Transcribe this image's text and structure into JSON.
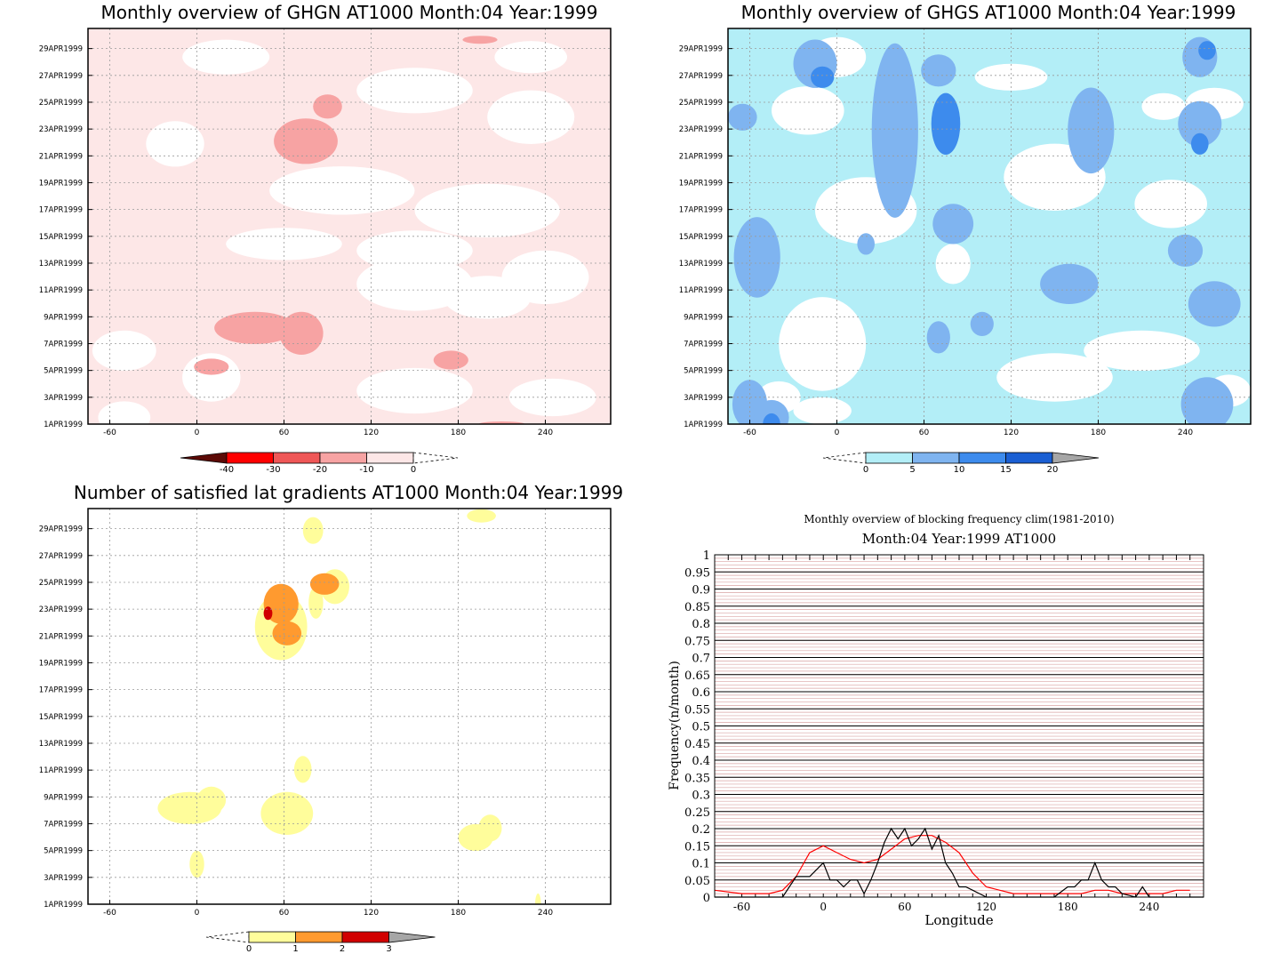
{
  "chart_data": [
    {
      "type": "heatmap",
      "title": "Monthly overview of GHGN AT1000 Month:04 Year:1999",
      "x_ticks": [
        "-60",
        "0",
        "60",
        "120",
        "180",
        "240"
      ],
      "xlim": [
        -75,
        285
      ],
      "y_ticks": [
        "1APR1999",
        "3APR1999",
        "5APR1999",
        "7APR1999",
        "9APR1999",
        "11APR1999",
        "13APR1999",
        "15APR1999",
        "17APR1999",
        "19APR1999",
        "21APR1999",
        "23APR1999",
        "25APR1999",
        "27APR1999",
        "29APR1999"
      ],
      "colorbar": {
        "labels": [
          "-40",
          "-30",
          "-20",
          "-10",
          "0"
        ],
        "colors": [
          "#5c0a06",
          "#ff0000",
          "#ef5757",
          "#f7a3a3",
          "#fde7e7"
        ]
      },
      "background_color": "#fde7e7",
      "regions": [
        {
          "level": "0",
          "color": "#ffffff",
          "ellipses": [
            [
              -50,
              1.5,
              18,
              1.2
            ],
            [
              10,
              4.5,
              20,
              1.8
            ],
            [
              -50,
              6.5,
              22,
              1.5
            ],
            [
              150,
              3.5,
              40,
              1.7
            ],
            [
              245,
              3.0,
              30,
              1.4
            ],
            [
              200,
              10.5,
              30,
              1.6
            ],
            [
              150,
              11.5,
              40,
              2.0
            ],
            [
              60,
              14.5,
              40,
              1.2
            ],
            [
              150,
              14.0,
              40,
              1.5
            ],
            [
              240,
              12.0,
              30,
              2.0
            ],
            [
              100,
              18.5,
              50,
              1.8
            ],
            [
              200,
              17.0,
              50,
              2.0
            ],
            [
              -15,
              22.0,
              20,
              1.7
            ],
            [
              230,
              24.0,
              30,
              2.0
            ],
            [
              150,
              26.0,
              40,
              1.7
            ],
            [
              20,
              28.5,
              30,
              1.3
            ],
            [
              230,
              28.5,
              25,
              1.2
            ]
          ]
        },
        {
          "level": "-10",
          "color": "#f7a3a3",
          "ellipses": [
            [
              40,
              8.2,
              28,
              1.2
            ],
            [
              72,
              7.8,
              15,
              1.6
            ],
            [
              10,
              5.3,
              12,
              0.6
            ],
            [
              175,
              5.8,
              12,
              0.7
            ],
            [
              75,
              22.2,
              22,
              1.7
            ],
            [
              90,
              24.8,
              10,
              0.9
            ],
            [
              65,
              2.0,
              0,
              0
            ],
            [
              210,
              1.0,
              16,
              0.2
            ],
            [
              195,
              29.8,
              12,
              0.3
            ]
          ]
        }
      ]
    },
    {
      "type": "heatmap",
      "title": "Monthly overview of GHGS AT1000 Month:04 Year:1999",
      "x_ticks": [
        "-60",
        "0",
        "60",
        "120",
        "180",
        "240"
      ],
      "xlim": [
        -75,
        285
      ],
      "y_ticks": [
        "1APR1999",
        "3APR1999",
        "5APR1999",
        "7APR1999",
        "9APR1999",
        "11APR1999",
        "13APR1999",
        "15APR1999",
        "17APR1999",
        "19APR1999",
        "21APR1999",
        "23APR1999",
        "25APR1999",
        "27APR1999",
        "29APR1999"
      ],
      "colorbar": {
        "labels": [
          "0",
          "5",
          "10",
          "15",
          "20"
        ],
        "colors": [
          "#b3eef7",
          "#7fb4f0",
          "#3d8bed",
          "#1a5fd3",
          "#a6a6a6"
        ]
      },
      "background_color": "#b3eef7",
      "regions": [
        {
          "level": "0",
          "color": "#ffffff",
          "ellipses": [
            [
              -10,
              7.0,
              30,
              3.5
            ],
            [
              -40,
              3.0,
              15,
              1.2
            ],
            [
              -10,
              2.0,
              20,
              1.0
            ],
            [
              150,
              4.5,
              40,
              1.8
            ],
            [
              210,
              6.5,
              40,
              1.5
            ],
            [
              270,
              3.5,
              15,
              1.2
            ],
            [
              20,
              17.0,
              35,
              2.5
            ],
            [
              -20,
              24.5,
              25,
              1.8
            ],
            [
              0,
              28.5,
              20,
              1.5
            ],
            [
              150,
              19.5,
              35,
              2.5
            ],
            [
              230,
              17.5,
              25,
              1.8
            ],
            [
              260,
              25.0,
              20,
              1.2
            ],
            [
              120,
              27.0,
              25,
              1.0
            ],
            [
              80,
              13.0,
              12,
              1.5
            ],
            [
              225,
              24.8,
              15,
              1.0
            ]
          ]
        },
        {
          "level": "5",
          "color": "#7fb4f0",
          "ellipses": [
            [
              -55,
              13.5,
              16,
              3.0
            ],
            [
              -60,
              2.5,
              12,
              1.8
            ],
            [
              -45,
              1.5,
              12,
              1.3
            ],
            [
              40,
              23.0,
              16,
              6.5
            ],
            [
              80,
              16.0,
              14,
              1.5
            ],
            [
              160,
              11.5,
              20,
              1.5
            ],
            [
              175,
              23.0,
              16,
              3.2
            ],
            [
              250,
              23.5,
              15,
              1.7
            ],
            [
              250,
              28.5,
              12,
              1.5
            ],
            [
              260,
              10.0,
              18,
              1.7
            ],
            [
              240,
              14.0,
              12,
              1.2
            ],
            [
              255,
              2.5,
              18,
              2.0
            ],
            [
              -15,
              28.0,
              15,
              1.8
            ],
            [
              70,
              27.5,
              12,
              1.2
            ],
            [
              70,
              7.5,
              8,
              1.2
            ],
            [
              100,
              8.5,
              8,
              0.9
            ],
            [
              -65,
              24.0,
              10,
              1.0
            ],
            [
              20,
              14.5,
              6,
              0.8
            ]
          ]
        },
        {
          "level": "10",
          "color": "#3d8bed",
          "ellipses": [
            [
              75,
              23.5,
              10,
              2.3
            ],
            [
              -45,
              1.0,
              6,
              0.8
            ],
            [
              -10,
              27.0,
              8,
              0.8
            ],
            [
              255,
              29.0,
              6,
              0.7
            ],
            [
              250,
              22.0,
              6,
              0.8
            ]
          ]
        }
      ]
    },
    {
      "type": "heatmap",
      "title": "Number of satisfied lat gradients AT1000 Month:04 Year:1999",
      "x_ticks": [
        "-60",
        "0",
        "60",
        "120",
        "180",
        "240"
      ],
      "xlim": [
        -75,
        285
      ],
      "y_ticks": [
        "1APR1999",
        "3APR1999",
        "5APR1999",
        "7APR1999",
        "9APR1999",
        "11APR1999",
        "13APR1999",
        "15APR1999",
        "17APR1999",
        "19APR1999",
        "21APR1999",
        "23APR1999",
        "25APR1999",
        "27APR1999",
        "29APR1999"
      ],
      "colorbar": {
        "labels": [
          "0",
          "1",
          "2",
          "3"
        ],
        "colors": [
          "#fffd9b",
          "#ff9a2f",
          "#d10000",
          "#a6a6a6"
        ]
      },
      "background_color": "#ffffff",
      "regions": [
        {
          "level": "1",
          "color": "#fffd9b",
          "ellipses": [
            [
              80,
              29.0,
              7,
              1.0
            ],
            [
              196,
              30.1,
              10,
              0.5
            ],
            [
              58,
              21.8,
              18,
              2.5
            ],
            [
              95,
              24.8,
              10,
              1.3
            ],
            [
              82,
              23.6,
              5,
              1.2
            ],
            [
              -5,
              8.2,
              22,
              1.2
            ],
            [
              10,
              8.8,
              10,
              1.0
            ],
            [
              62,
              7.8,
              18,
              1.6
            ],
            [
              73,
              11.1,
              6,
              1.0
            ],
            [
              0,
              4.0,
              5,
              1.0
            ],
            [
              192,
              6.0,
              12,
              1.0
            ],
            [
              202,
              6.7,
              8,
              1.0
            ],
            [
              88,
              0.5,
              4,
              0.5
            ],
            [
              235,
              1.0,
              2,
              0.8
            ]
          ]
        },
        {
          "level": "2",
          "color": "#ff9a2f",
          "ellipses": [
            [
              58,
              23.5,
              12,
              1.5
            ],
            [
              88,
              25.0,
              10,
              0.8
            ],
            [
              62,
              21.3,
              10,
              0.9
            ]
          ]
        },
        {
          "level": "3",
          "color": "#d10000",
          "ellipses": [
            [
              49,
              22.8,
              3,
              0.5
            ]
          ]
        }
      ]
    },
    {
      "type": "line",
      "title": "Monthly overview of blocking frequency clim(1981-2010)",
      "subtitle": "Month:04 Year:1999  AT1000",
      "xlabel": "Longitude",
      "ylabel": "Frequency(n/month)",
      "x_ticks": [
        "-60",
        "0",
        "60",
        "120",
        "180",
        "240"
      ],
      "y_ticks": [
        "0",
        "0.05",
        "0.1",
        "0.15",
        "0.2",
        "0.25",
        "0.3",
        "0.35",
        "0.4",
        "0.45",
        "0.5",
        "0.55",
        "0.6",
        "0.65",
        "0.7",
        "0.75",
        "0.8",
        "0.85",
        "0.9",
        "0.95",
        "1"
      ],
      "xlim": [
        -80,
        280
      ],
      "ylim": [
        0,
        1
      ],
      "grid": true,
      "series": [
        {
          "name": "",
          "color": "#ff0000",
          "x": [
            -80,
            -60,
            -40,
            -30,
            -20,
            -10,
            0,
            10,
            20,
            30,
            40,
            50,
            60,
            70,
            80,
            90,
            100,
            110,
            120,
            130,
            140,
            150,
            160,
            170,
            180,
            190,
            200,
            210,
            220,
            230,
            240,
            250,
            260,
            270
          ],
          "values": [
            0.02,
            0.01,
            0.01,
            0.02,
            0.06,
            0.13,
            0.15,
            0.13,
            0.11,
            0.1,
            0.11,
            0.14,
            0.17,
            0.18,
            0.18,
            0.16,
            0.13,
            0.07,
            0.03,
            0.02,
            0.01,
            0.01,
            0.01,
            0.01,
            0.01,
            0.01,
            0.02,
            0.02,
            0.01,
            0.01,
            0.01,
            0.01,
            0.02,
            0.02
          ]
        },
        {
          "name": "",
          "color": "#000000",
          "x": [
            -80,
            -30,
            -25,
            -20,
            -15,
            -10,
            -5,
            0,
            5,
            10,
            15,
            20,
            25,
            30,
            35,
            40,
            45,
            50,
            55,
            60,
            65,
            70,
            75,
            80,
            85,
            90,
            95,
            100,
            105,
            110,
            115,
            120,
            170,
            180,
            185,
            190,
            195,
            200,
            205,
            210,
            215,
            220,
            230,
            235,
            240,
            280
          ],
          "values": [
            0,
            0,
            0.03,
            0.06,
            0.06,
            0.06,
            0.08,
            0.1,
            0.05,
            0.05,
            0.03,
            0.05,
            0.05,
            0.01,
            0.05,
            0.1,
            0.16,
            0.2,
            0.17,
            0.2,
            0.15,
            0.17,
            0.2,
            0.14,
            0.18,
            0.1,
            0.07,
            0.03,
            0.03,
            0.02,
            0.01,
            0,
            0,
            0.03,
            0.03,
            0.05,
            0.05,
            0.1,
            0.05,
            0.03,
            0.03,
            0.01,
            0,
            0.03,
            0,
            0
          ]
        }
      ]
    }
  ]
}
